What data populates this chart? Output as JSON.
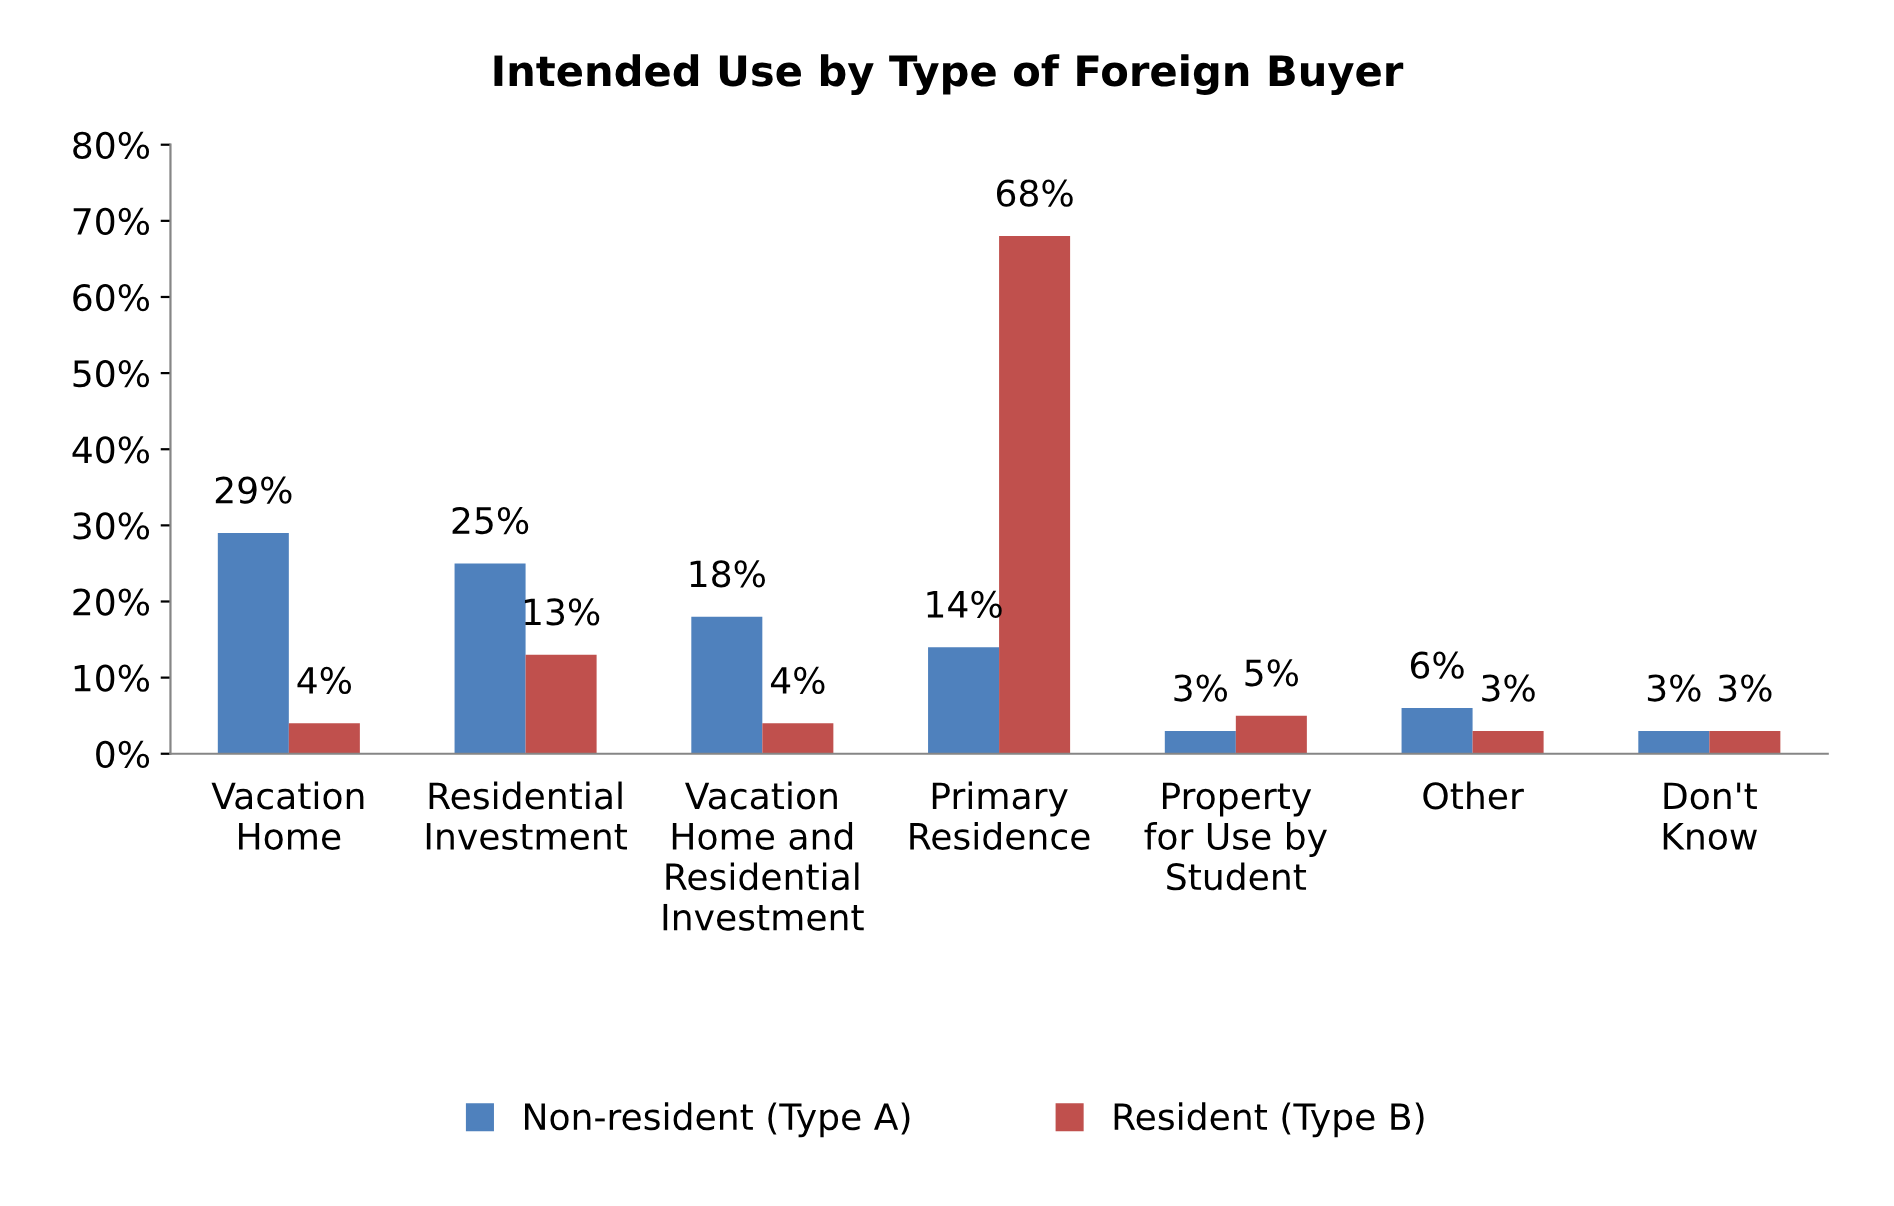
{
  "chart_data": {
    "type": "bar",
    "title": "Intended Use by Type of Foreign Buyer",
    "categories": [
      "Vacation\nHome",
      "Residential\nInvestment",
      "Vacation\nHome and\nResidential\nInvestment",
      "Primary\nResidence",
      "Property\nfor Use by\nStudent",
      "Other",
      "Don't\nKnow"
    ],
    "series": [
      {
        "name": "Non-resident (Type A)",
        "color": "#4f81bd",
        "values": [
          29,
          25,
          18,
          14,
          3,
          6,
          3
        ],
        "value_labels": [
          "29%",
          "25%",
          "18%",
          "14%",
          "3%",
          "6%",
          "3%"
        ]
      },
      {
        "name": "Resident (Type B)",
        "color": "#c0504d",
        "values": [
          4,
          13,
          4,
          68,
          5,
          3,
          3
        ],
        "value_labels": [
          "4%",
          "13%",
          "4%",
          "68%",
          "5%",
          "3%",
          "3%"
        ]
      }
    ],
    "ylim": [
      0,
      80
    ],
    "yticks": [
      {
        "value": 0,
        "label": "0%"
      },
      {
        "value": 10,
        "label": "10%"
      },
      {
        "value": 20,
        "label": "20%"
      },
      {
        "value": 30,
        "label": "30%"
      },
      {
        "value": 40,
        "label": "40%"
      },
      {
        "value": 50,
        "label": "50%"
      },
      {
        "value": 60,
        "label": "60%"
      },
      {
        "value": 70,
        "label": "70%"
      },
      {
        "value": 80,
        "label": "80%"
      }
    ],
    "grid": false,
    "legend": "bottom"
  }
}
